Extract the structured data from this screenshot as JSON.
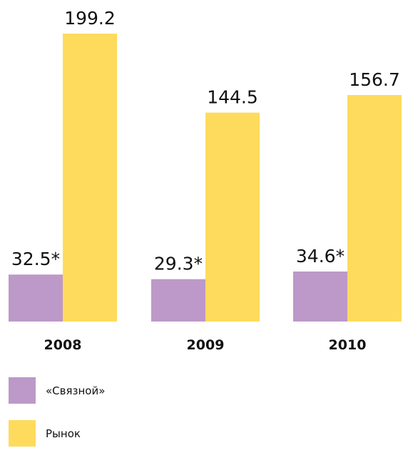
{
  "chart_data": {
    "type": "bar",
    "categories": [
      "2008",
      "2009",
      "2010"
    ],
    "series": [
      {
        "name": "«Связной»",
        "values": [
          32.5,
          29.3,
          34.6
        ],
        "labels": [
          "32.5*",
          "29.3*",
          "34.6*"
        ],
        "color": "#BC99C8"
      },
      {
        "name": "Рынок",
        "values": [
          199.2,
          144.5,
          156.7
        ],
        "labels": [
          "199.2",
          "144.5",
          "156.7"
        ],
        "color": "#FEDB5C"
      }
    ],
    "title": "",
    "xlabel": "",
    "ylabel": "",
    "ylim": [
      0,
      199.2
    ],
    "grid": false,
    "legend_position": "bottom-left"
  }
}
